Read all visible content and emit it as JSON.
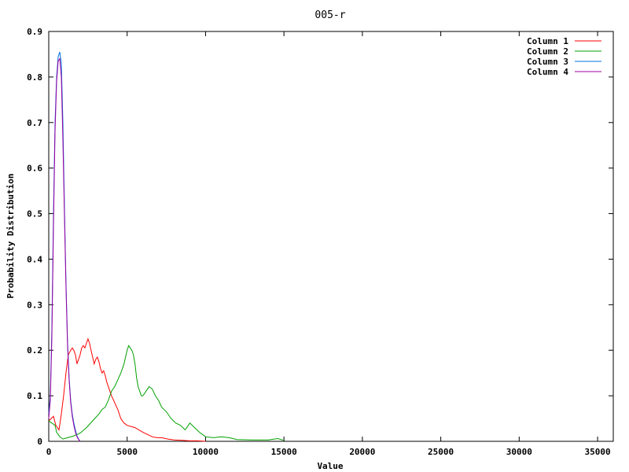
{
  "chart_data": {
    "type": "line",
    "title": "005-r",
    "xlabel": "Value",
    "ylabel": "Probability Distribution",
    "xlim": [
      0,
      36000
    ],
    "ylim": [
      0,
      0.9
    ],
    "x_ticks": [
      0,
      5000,
      10000,
      15000,
      20000,
      25000,
      30000,
      35000
    ],
    "y_ticks": [
      0,
      0.1,
      0.2,
      0.3,
      0.4,
      0.5,
      0.6,
      0.7,
      0.8,
      0.9
    ],
    "x_tick_labels": [
      "0",
      "5000",
      "10000",
      "15000",
      "20000",
      "25000",
      "30000",
      "35000"
    ],
    "y_tick_labels": [
      "0",
      "0.1",
      "0.2",
      "0.3",
      "0.4",
      "0.5",
      "0.6",
      "0.7",
      "0.8",
      "0.9"
    ],
    "grid": false,
    "legend": "top-right",
    "series": [
      {
        "name": "Column 1",
        "color": "#ff0000",
        "x": [
          0,
          150,
          300,
          450,
          550,
          650,
          800,
          950,
          1100,
          1250,
          1400,
          1500,
          1600,
          1700,
          1800,
          1900,
          2000,
          2100,
          2200,
          2300,
          2400,
          2500,
          2600,
          2700,
          2800,
          2900,
          3000,
          3100,
          3200,
          3300,
          3400,
          3500,
          3600,
          3700,
          3800,
          3900,
          4000,
          4200,
          4400,
          4600,
          4800,
          5000,
          5500,
          6000,
          6300,
          6600,
          6900,
          7200,
          7600,
          8000,
          8500,
          9000,
          9500,
          10000
        ],
        "y": [
          0.045,
          0.05,
          0.055,
          0.035,
          0.03,
          0.025,
          0.06,
          0.1,
          0.15,
          0.19,
          0.2,
          0.205,
          0.2,
          0.19,
          0.17,
          0.18,
          0.19,
          0.205,
          0.21,
          0.205,
          0.215,
          0.225,
          0.215,
          0.2,
          0.185,
          0.17,
          0.18,
          0.185,
          0.175,
          0.16,
          0.15,
          0.155,
          0.145,
          0.13,
          0.12,
          0.11,
          0.1,
          0.085,
          0.07,
          0.05,
          0.04,
          0.035,
          0.03,
          0.02,
          0.015,
          0.01,
          0.008,
          0.008,
          0.005,
          0.003,
          0.002,
          0.001,
          0.001,
          0.0
        ]
      },
      {
        "name": "Column 2",
        "color": "#00a000",
        "x": [
          0,
          200,
          400,
          500,
          700,
          900,
          1200,
          1600,
          2000,
          2400,
          2800,
          3200,
          3400,
          3600,
          3800,
          4000,
          4200,
          4400,
          4600,
          4800,
          4900,
          5000,
          5100,
          5200,
          5300,
          5400,
          5500,
          5600,
          5700,
          5800,
          5900,
          6000,
          6200,
          6400,
          6600,
          6800,
          7000,
          7200,
          7500,
          7800,
          8100,
          8400,
          8700,
          9000,
          9300,
          9600,
          10000,
          10500,
          11000,
          11500,
          12000,
          13000,
          14000,
          14600,
          15000
        ],
        "y": [
          0.045,
          0.04,
          0.035,
          0.02,
          0.01,
          0.005,
          0.008,
          0.012,
          0.018,
          0.03,
          0.045,
          0.06,
          0.07,
          0.075,
          0.09,
          0.11,
          0.12,
          0.135,
          0.15,
          0.17,
          0.185,
          0.2,
          0.21,
          0.205,
          0.2,
          0.19,
          0.17,
          0.14,
          0.12,
          0.11,
          0.1,
          0.1,
          0.11,
          0.12,
          0.115,
          0.1,
          0.09,
          0.075,
          0.065,
          0.05,
          0.04,
          0.035,
          0.025,
          0.04,
          0.03,
          0.02,
          0.01,
          0.008,
          0.01,
          0.008,
          0.004,
          0.003,
          0.003,
          0.006,
          0.002
        ]
      },
      {
        "name": "Column 3",
        "color": "#0070e0",
        "x": [
          0,
          100,
          200,
          300,
          400,
          500,
          600,
          700,
          800,
          900,
          1000,
          1100,
          1200,
          1300,
          1400,
          1500,
          1600,
          1700,
          1800,
          1900,
          2000
        ],
        "y": [
          0.06,
          0.1,
          0.25,
          0.5,
          0.7,
          0.8,
          0.845,
          0.855,
          0.83,
          0.7,
          0.52,
          0.35,
          0.22,
          0.14,
          0.09,
          0.06,
          0.04,
          0.025,
          0.012,
          0.005,
          0.0
        ]
      },
      {
        "name": "Column 4",
        "color": "#a000a0",
        "x": [
          0,
          100,
          200,
          300,
          400,
          500,
          600,
          700,
          800,
          900,
          1000,
          1100,
          1200,
          1300,
          1400,
          1500,
          1600,
          1700,
          1800,
          1900,
          2000
        ],
        "y": [
          0.05,
          0.09,
          0.23,
          0.47,
          0.68,
          0.79,
          0.835,
          0.84,
          0.8,
          0.66,
          0.5,
          0.34,
          0.21,
          0.135,
          0.085,
          0.055,
          0.035,
          0.02,
          0.01,
          0.004,
          0.0
        ]
      }
    ]
  }
}
